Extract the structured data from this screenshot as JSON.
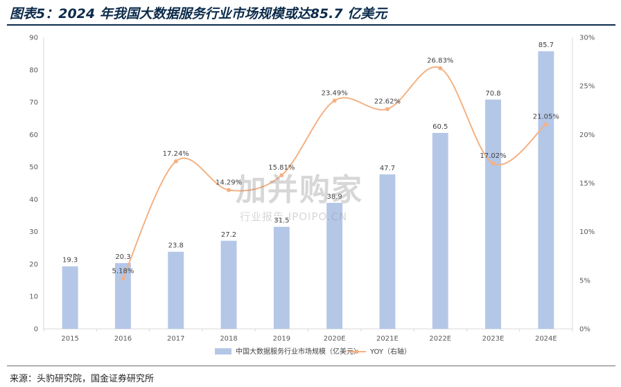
{
  "header": {
    "title": "图表5：2024 年我国大数据服务行业市场规模或达85.7 亿美元"
  },
  "footer": {
    "source": "来源：头豹研究院，国金证券研究所"
  },
  "watermark": {
    "main": "加并购家",
    "sub": "行业报告 IPOIPO.CN"
  },
  "colors": {
    "bar": "#b4c7e7",
    "line": "#f4b183",
    "title": "#0b2a4a"
  },
  "chart_data": {
    "type": "bar",
    "categories": [
      "2015",
      "2016",
      "2017",
      "2018",
      "2019",
      "2020E",
      "2021E",
      "2022E",
      "2023E",
      "2024E"
    ],
    "series": [
      {
        "name": "中国大数据服务行业市场规模（亿美元）",
        "type": "bar",
        "axis": "left",
        "values": [
          19.3,
          20.3,
          23.8,
          27.2,
          31.5,
          38.9,
          47.7,
          60.5,
          70.8,
          85.7
        ],
        "labels": [
          "19.3",
          "20.3",
          "23.8",
          "27.2",
          "31.5",
          "38.9",
          "47.7",
          "60.5",
          "70.8",
          "85.7"
        ]
      },
      {
        "name": "YOY（右轴）",
        "type": "line",
        "axis": "right",
        "smooth": true,
        "values": [
          null,
          5.18,
          17.24,
          14.29,
          15.81,
          23.49,
          22.62,
          26.83,
          17.02,
          21.05
        ],
        "labels": [
          "",
          "5.18%",
          "17.24%",
          "14.29%",
          "15.81%",
          "23.49%",
          "22.62%",
          "26.83%",
          "17.02%",
          "21.05%"
        ]
      }
    ],
    "y_left": {
      "min": 0,
      "max": 90,
      "step": 10,
      "ticks": [
        "0",
        "10",
        "20",
        "30",
        "40",
        "50",
        "60",
        "70",
        "80",
        "90"
      ]
    },
    "y_right": {
      "min": 0,
      "max": 30,
      "step": 5,
      "ticks": [
        "0%",
        "5%",
        "10%",
        "15%",
        "20%",
        "25%",
        "30%"
      ]
    },
    "grid": false,
    "legend": "bottom-center"
  }
}
